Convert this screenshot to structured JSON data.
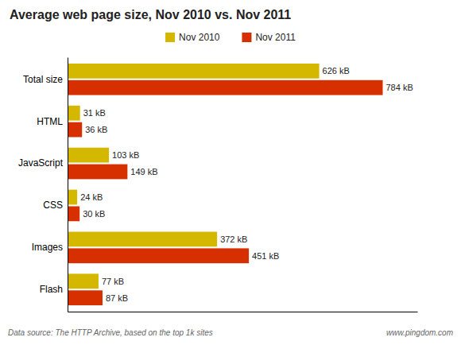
{
  "chart_data": {
    "type": "bar",
    "orientation": "horizontal",
    "title": "Average web page size, Nov 2010 vs. Nov 2011",
    "categories": [
      "Total size",
      "HTML",
      "JavaScript",
      "CSS",
      "Images",
      "Flash"
    ],
    "series": [
      {
        "name": "Nov 2010",
        "color": "#d4b800",
        "values": [
          626,
          31,
          103,
          24,
          372,
          77
        ],
        "value_labels": [
          "626 kB",
          "31 kB",
          "103 kB",
          "24 kB",
          "372 kB",
          "77 kB"
        ]
      },
      {
        "name": "Nov 2011",
        "color": "#d63000",
        "values": [
          784,
          36,
          149,
          30,
          451,
          87
        ],
        "value_labels": [
          "784 kB",
          "36 kB",
          "149 kB",
          "30 kB",
          "451 kB",
          "87 kB"
        ]
      }
    ],
    "xlim": [
      0,
      870
    ],
    "tick_labels": "y",
    "data_labels": true,
    "grid": false,
    "legend": "top",
    "annotations": [
      "Data source: The HTTP Archive, based on the top 1k sites",
      "www.pingdom.com"
    ]
  }
}
